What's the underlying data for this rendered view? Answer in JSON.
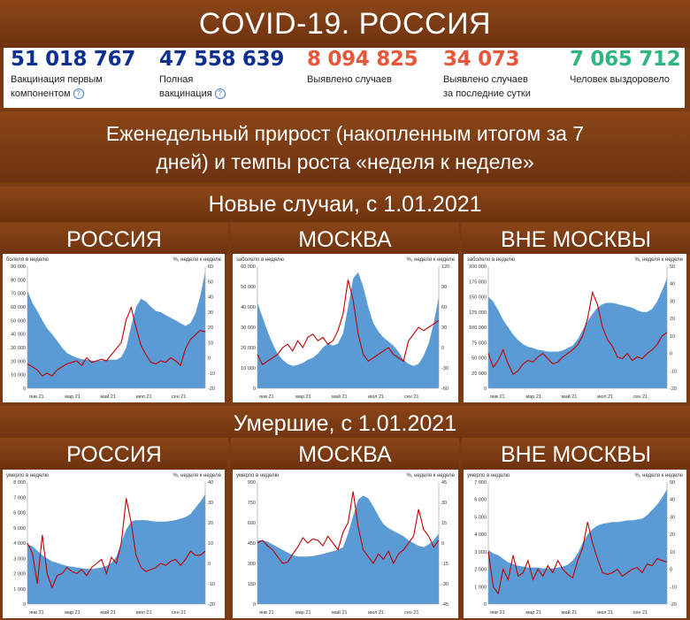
{
  "header": {
    "title": "COVID-19. РОССИЯ"
  },
  "stats": [
    {
      "value": "51 018 767",
      "label1": "Вакцинация первым",
      "label2": "компонентом",
      "help": "?",
      "color": "#0d2f8f"
    },
    {
      "value": "47 558 639",
      "label1": "Полная",
      "label2": "вакцинация",
      "help": "?",
      "color": "#0d2f8f"
    },
    {
      "value": "8 094 825",
      "label1": "Выявлено случаев",
      "label2": "",
      "help": "",
      "color": "#e8573a"
    },
    {
      "value": "34 073",
      "label1": "Выявлено случаев",
      "label2": "за последние сутки",
      "help": "",
      "color": "#e8573a"
    },
    {
      "value": "7 065 712",
      "label1": "Человек выздоровело",
      "label2": "",
      "help": "",
      "color": "#2fb67f"
    }
  ],
  "subtitle": "Еженедельный прирост (накопленным итогом за 7 дней) и темпы роста «неделя к неделе»",
  "subtitle_line1": "Еженедельный прирост (накопленным итогом за 7",
  "subtitle_line2": "дней) и темпы роста «неделя к неделе»",
  "section_cases": "Новые случаи, с 1.01.2021",
  "section_deaths": "Умершие, с 1.01.2021",
  "regions": [
    "РОССИЯ",
    "МОСКВА",
    "ВНЕ МОСКВЫ"
  ],
  "colors": {
    "area": "#5b9bd5",
    "line": "#c00000",
    "banner": "#7a3a12"
  },
  "chart_data": [
    {
      "id": "cases-russia",
      "type": "area+line",
      "ylabel_left": "болело в неделю",
      "ylabel_right": "%, неделя к неделе",
      "left_ticks": [
        "0",
        "10 000",
        "20 000",
        "30 000",
        "40 000",
        "50 000",
        "60 000",
        "70 000",
        "80 000",
        "90 000"
      ],
      "ylim_left": [
        0,
        90000
      ],
      "right_ticks": [
        "-20",
        "-10",
        "0",
        "10",
        "20",
        "30",
        "40",
        "50",
        "60"
      ],
      "ylim_right": [
        -20,
        60
      ],
      "x_ticks": [
        "янв 21",
        "мар 21",
        "май 21",
        "июл 21",
        "сен 21"
      ],
      "area": [
        72000,
        63000,
        57000,
        50000,
        44000,
        40000,
        35000,
        30000,
        26000,
        24000,
        22500,
        21500,
        21000,
        20500,
        20000,
        20500,
        21000,
        21000,
        21000,
        23000,
        30000,
        46000,
        60000,
        66000,
        64000,
        60000,
        57000,
        56000,
        54000,
        52000,
        50000,
        48000,
        46000,
        48000,
        55000,
        68000,
        86000
      ],
      "line": [
        -4,
        -6,
        -8,
        -12,
        -10,
        -12,
        -8,
        -6,
        -4,
        -3,
        -2,
        -5,
        0,
        -3,
        -2,
        -1,
        -2,
        2,
        6,
        10,
        25,
        33,
        20,
        8,
        2,
        -3,
        -4,
        -2,
        -3,
        0,
        -2,
        -5,
        6,
        12,
        15,
        18,
        17
      ]
    },
    {
      "id": "cases-moscow",
      "type": "area+line",
      "ylabel_left": "заболело в неделю",
      "ylabel_right": "%, неделя к неделе",
      "left_ticks": [
        "0",
        "10 000",
        "20 000",
        "30 000",
        "40 000",
        "50 000",
        "60 000"
      ],
      "ylim_left": [
        0,
        60000
      ],
      "right_ticks": [
        "-60",
        "-30",
        "0",
        "30",
        "60",
        "90",
        "120"
      ],
      "ylim_right": [
        -60,
        120
      ],
      "x_ticks": [
        "янв 21",
        "мар 21",
        "май 21",
        "июл 21",
        "сен 21"
      ],
      "area": [
        42000,
        35000,
        28000,
        22000,
        17000,
        14000,
        12000,
        11000,
        11500,
        12500,
        14000,
        15000,
        17000,
        20000,
        22000,
        21000,
        22000,
        27000,
        40000,
        54000,
        57000,
        50000,
        40000,
        32000,
        28000,
        25000,
        23000,
        21000,
        18000,
        14000,
        12000,
        11000,
        12000,
        16000,
        22000,
        32000,
        45000
      ],
      "line": [
        -10,
        -25,
        -20,
        -15,
        -10,
        0,
        5,
        -5,
        10,
        0,
        15,
        20,
        10,
        15,
        5,
        10,
        25,
        50,
        100,
        70,
        20,
        -10,
        -20,
        -15,
        -10,
        -5,
        0,
        -10,
        -15,
        -20,
        10,
        20,
        30,
        25,
        30,
        35,
        40
      ]
    },
    {
      "id": "cases-outside",
      "type": "area+line",
      "ylabel_left": "заболело в неделю",
      "ylabel_right": "%, неделя к неделе",
      "left_ticks": [
        "0",
        "25 000",
        "50 000",
        "75 000",
        "100 000",
        "125 000",
        "150 000",
        "175 000",
        "200 000"
      ],
      "ylim_left": [
        0,
        200000
      ],
      "right_ticks": [
        "-20",
        "-10",
        "0",
        "10",
        "20",
        "30",
        "40",
        "50"
      ],
      "ylim_right": [
        -20,
        50
      ],
      "x_ticks": [
        "янв 21",
        "мар 21",
        "май 21",
        "июл 21",
        "сен 21"
      ],
      "area": [
        150000,
        142000,
        128000,
        112000,
        100000,
        88000,
        79000,
        72000,
        68000,
        66000,
        63000,
        62000,
        60000,
        60000,
        60000,
        62000,
        66000,
        70000,
        80000,
        95000,
        110000,
        122000,
        132000,
        138000,
        140000,
        140000,
        138000,
        136000,
        134000,
        132000,
        128000,
        125000,
        125000,
        130000,
        142000,
        160000,
        180000
      ],
      "line": [
        0,
        -8,
        -4,
        2,
        -6,
        -12,
        -10,
        -6,
        -4,
        -5,
        -2,
        0,
        -3,
        -6,
        -5,
        -2,
        0,
        2,
        5,
        10,
        20,
        35,
        28,
        15,
        8,
        4,
        -2,
        -3,
        0,
        -4,
        -2,
        -3,
        0,
        2,
        5,
        10,
        12
      ]
    },
    {
      "id": "deaths-russia",
      "type": "area+line",
      "ylabel_left": "умерло в неделю",
      "ylabel_right": "%, неделя к неделе",
      "left_ticks": [
        "0",
        "1 000",
        "2 000",
        "3 000",
        "4 000",
        "5 000",
        "6 000",
        "7 000",
        "8 000"
      ],
      "ylim_left": [
        0,
        8000
      ],
      "right_ticks": [
        "-20",
        "-10",
        "0",
        "10",
        "20",
        "30",
        "40"
      ],
      "ylim_right": [
        -20,
        40
      ],
      "x_ticks": [
        "янв 21",
        "мар 21",
        "май 21",
        "июл 21",
        "сен 21"
      ],
      "area": [
        3900,
        3800,
        3500,
        3200,
        3000,
        2800,
        2700,
        2600,
        2500,
        2450,
        2400,
        2350,
        2300,
        2300,
        2350,
        2400,
        2500,
        2700,
        3100,
        4000,
        4900,
        5400,
        5500,
        5500,
        5500,
        5450,
        5400,
        5400,
        5400,
        5450,
        5500,
        5600,
        5700,
        5900,
        6300,
        6700,
        7200
      ],
      "line": [
        10,
        5,
        -10,
        14,
        -5,
        -12,
        -6,
        -5,
        -2,
        -4,
        -5,
        -3,
        -6,
        -2,
        0,
        2,
        -5,
        3,
        0,
        10,
        32,
        20,
        4,
        -2,
        -4,
        -3,
        -2,
        0,
        -1,
        1,
        2,
        -1,
        2,
        6,
        4,
        4,
        6
      ]
    },
    {
      "id": "deaths-moscow",
      "type": "area+line",
      "ylabel_left": "умерло в неделю",
      "ylabel_right": "%, неделя к неделе",
      "left_ticks": [
        "0",
        "150",
        "300",
        "450",
        "600",
        "750",
        "900"
      ],
      "ylim_left": [
        0,
        900
      ],
      "right_ticks": [
        "-45",
        "-30",
        "-15",
        "0",
        "15",
        "30",
        "45"
      ],
      "ylim_right": [
        -45,
        45
      ],
      "x_ticks": [
        "янв 21",
        "мар 21",
        "май 21",
        "июл 21",
        "сен 21"
      ],
      "area": [
        470,
        470,
        460,
        440,
        420,
        400,
        380,
        360,
        350,
        350,
        350,
        355,
        360,
        370,
        380,
        390,
        400,
        420,
        520,
        650,
        770,
        800,
        780,
        720,
        650,
        590,
        560,
        540,
        520,
        500,
        470,
        450,
        430,
        420,
        440,
        470,
        520
      ],
      "line": [
        0,
        2,
        -2,
        -5,
        -10,
        -15,
        -14,
        -8,
        -3,
        4,
        0,
        3,
        2,
        -2,
        5,
        0,
        -5,
        8,
        15,
        38,
        12,
        -5,
        -10,
        -15,
        -8,
        -12,
        -6,
        -15,
        -8,
        -5,
        0,
        5,
        25,
        10,
        5,
        -3,
        2
      ]
    },
    {
      "id": "deaths-outside",
      "type": "area+line",
      "ylabel_left": "умерло в неделю",
      "ylabel_right": "%, неделя к неделе",
      "left_ticks": [
        "0",
        "1 000",
        "2 000",
        "3 000",
        "4 000",
        "5 000",
        "6 000",
        "7 000"
      ],
      "ylim_left": [
        0,
        7000
      ],
      "right_ticks": [
        "-20",
        "-10",
        "0",
        "10",
        "20",
        "30",
        "40",
        "50"
      ],
      "ylim_right": [
        -20,
        50
      ],
      "x_ticks": [
        "янв 21",
        "мар 21",
        "май 21",
        "июл 21",
        "сен 21"
      ],
      "area": [
        3100,
        2900,
        2800,
        2600,
        2400,
        2300,
        2200,
        2150,
        2100,
        2100,
        2100,
        2050,
        2050,
        2050,
        2100,
        2150,
        2250,
        2500,
        2900,
        3500,
        4000,
        4300,
        4500,
        4600,
        4650,
        4700,
        4700,
        4750,
        4800,
        4800,
        4850,
        4900,
        5100,
        5400,
        5700,
        6100,
        6600
      ],
      "line": [
        10,
        -10,
        -14,
        0,
        -6,
        8,
        -4,
        -2,
        5,
        -6,
        0,
        -4,
        2,
        -2,
        5,
        0,
        -3,
        -5,
        5,
        12,
        27,
        15,
        6,
        -2,
        -3,
        -2,
        0,
        -4,
        -2,
        0,
        1,
        -2,
        3,
        2,
        6,
        5,
        4
      ]
    }
  ]
}
